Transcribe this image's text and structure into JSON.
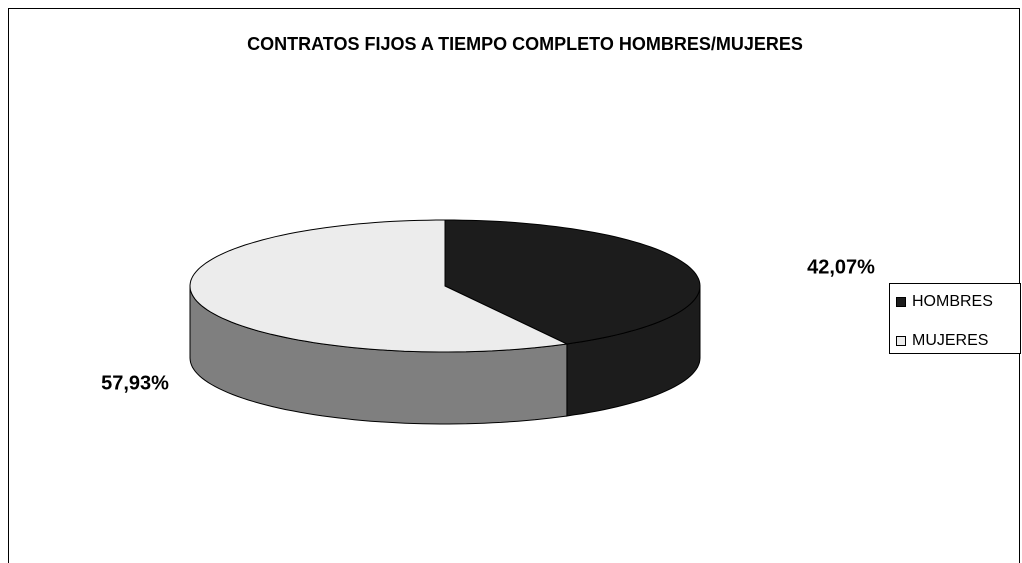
{
  "chart_data": {
    "type": "pie3d",
    "title": "CONTRATOS FIJOS A TIEMPO COMPLETO HOMBRES/MUJERES",
    "categories": [
      "HOMBRES",
      "MUJERES"
    ],
    "values": [
      42.07,
      57.93
    ],
    "value_labels": [
      "42,07%",
      "57,93%"
    ],
    "colors": [
      "#1c1c1c",
      "#ececec"
    ],
    "legend": "right"
  }
}
